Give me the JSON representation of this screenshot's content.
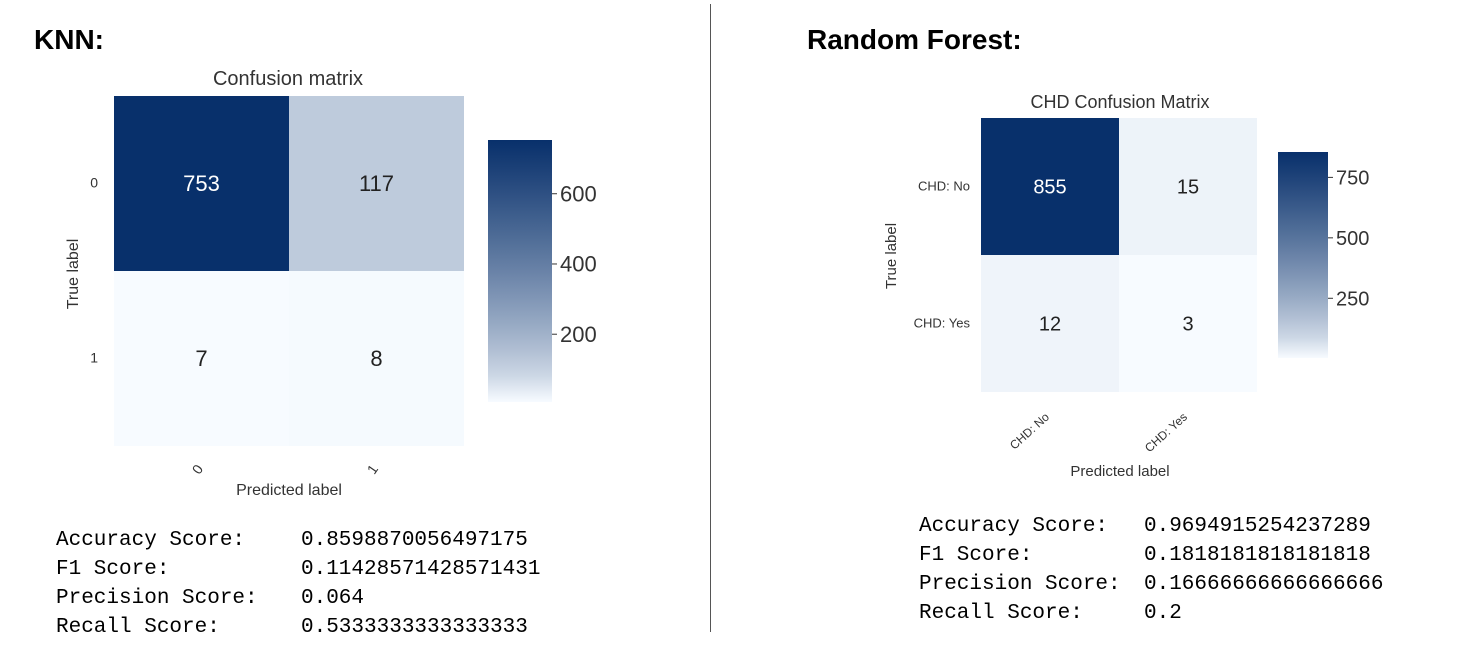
{
  "panels": [
    {
      "heading": "KNN:",
      "metrics": [
        {
          "label": "Accuracy Score:",
          "value": "0.8598870056497175"
        },
        {
          "label": "F1 Score:",
          "value": "0.11428571428571431"
        },
        {
          "label": "Precision Score:",
          "value": "0.064"
        },
        {
          "label": "Recall Score:",
          "value": "0.5333333333333333"
        }
      ]
    },
    {
      "heading": "Random Forest:",
      "metrics": [
        {
          "label": "Accuracy Score:",
          "value": "0.9694915254237289"
        },
        {
          "label": "F1 Score:",
          "value": "0.1818181818181818"
        },
        {
          "label": "Precision Score:",
          "value": "0.16666666666666666"
        },
        {
          "label": "Recall Score:",
          "value": "0.2"
        }
      ]
    }
  ],
  "chart_data": [
    {
      "type": "heatmap",
      "title": "Confusion matrix",
      "xlabel": "Predicted label",
      "ylabel": "True label",
      "x_ticks": [
        "0",
        "1"
      ],
      "y_ticks": [
        "0",
        "1"
      ],
      "matrix": [
        [
          753,
          117
        ],
        [
          7,
          8
        ]
      ],
      "colormap": [
        "#f7fbff",
        "#08306b"
      ],
      "color_range": [
        7,
        753
      ],
      "colorbar_ticks": [
        200,
        400,
        600
      ],
      "grid": false
    },
    {
      "type": "heatmap",
      "title": "CHD Confusion Matrix",
      "xlabel": "Predicted label",
      "ylabel": "True label",
      "x_ticks": [
        "CHD: No",
        "CHD: Yes"
      ],
      "y_ticks": [
        "CHD: No",
        "CHD: Yes"
      ],
      "matrix": [
        [
          855,
          15
        ],
        [
          12,
          3
        ]
      ],
      "colormap": [
        "#f7fbff",
        "#08306b"
      ],
      "color_range": [
        3,
        855
      ],
      "colorbar_ticks": [
        250,
        500,
        750
      ],
      "grid": false
    }
  ]
}
